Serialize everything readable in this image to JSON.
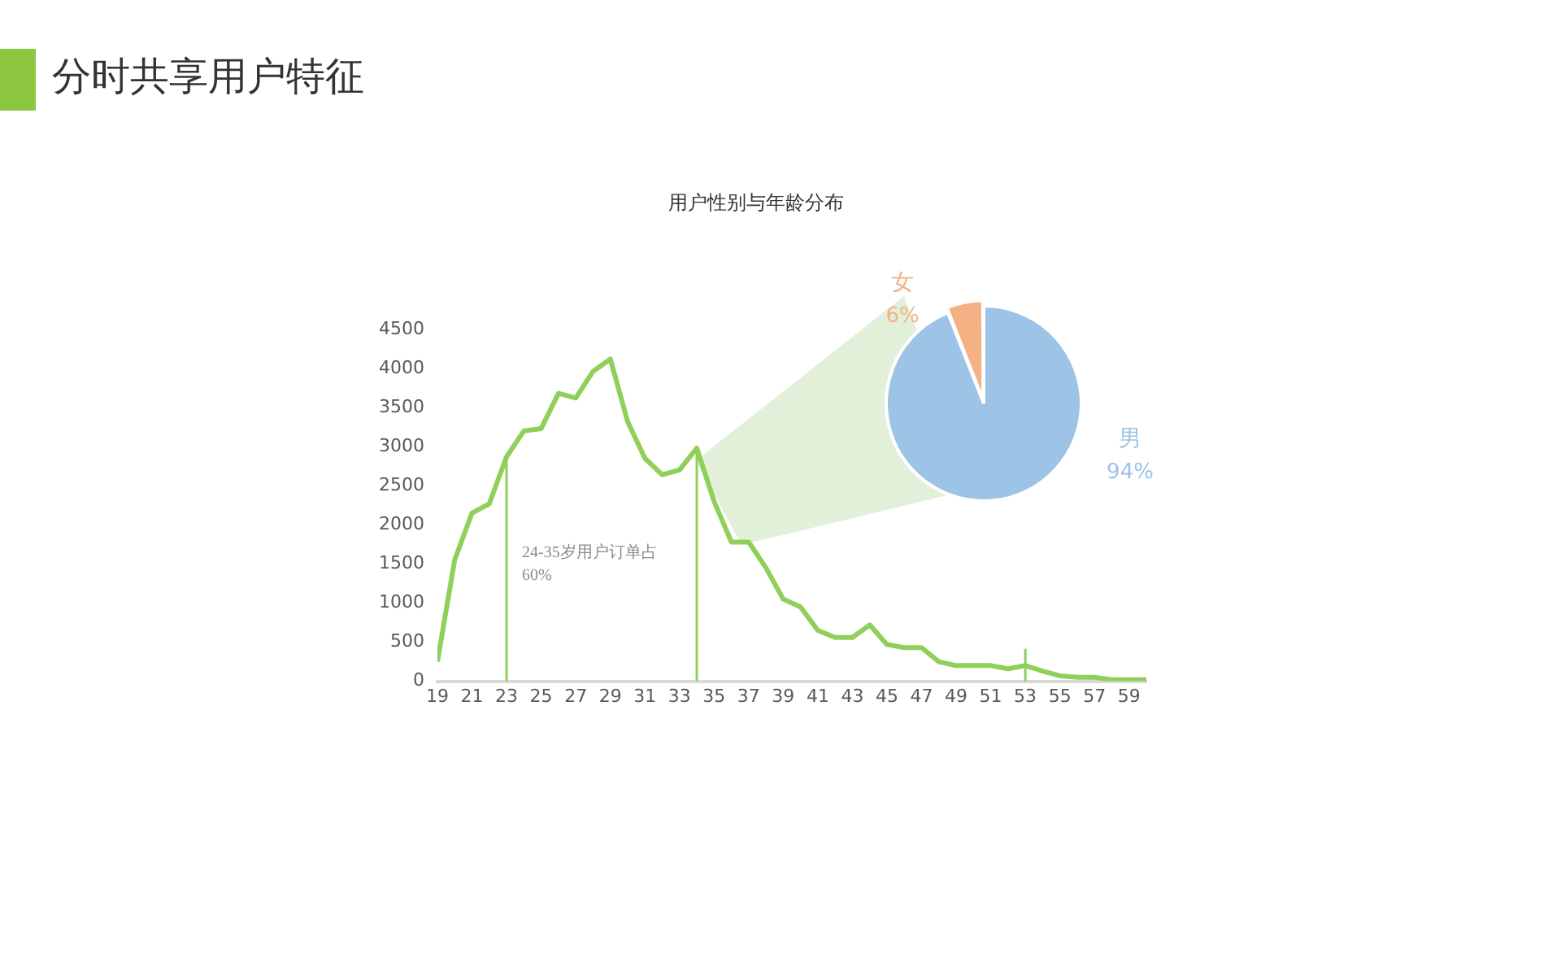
{
  "chart_data": [
    {
      "type": "line",
      "title": "分时共享用户特征",
      "subtitle": "用户性别与年龄分布",
      "x": [
        19,
        20,
        21,
        22,
        23,
        24,
        25,
        26,
        27,
        28,
        29,
        30,
        31,
        32,
        33,
        34,
        35,
        36,
        37,
        38,
        39,
        40,
        41,
        42,
        43,
        44,
        45,
        46,
        47,
        48,
        49,
        50,
        51,
        52,
        53,
        54,
        55,
        56,
        57,
        58,
        59,
        60
      ],
      "series": [
        {
          "color": "#8fcf5a",
          "values": [
            250,
            1550,
            2150,
            2270,
            2870,
            3200,
            3230,
            3680,
            3620,
            3960,
            4120,
            3320,
            2850,
            2640,
            2700,
            2980,
            2300,
            1780,
            1780,
            1450,
            1050,
            950,
            650,
            560,
            560,
            720,
            470,
            430,
            430,
            250,
            200,
            200,
            200,
            160,
            200,
            130,
            70,
            50,
            50,
            20,
            20,
            20
          ]
        }
      ],
      "xlim": [
        19,
        60
      ],
      "xticks": [
        19,
        21,
        23,
        25,
        27,
        29,
        31,
        33,
        35,
        37,
        39,
        41,
        43,
        45,
        47,
        49,
        51,
        53,
        55,
        57,
        59
      ],
      "ylim": [
        0,
        4500
      ],
      "yticks": [
        0,
        500,
        1000,
        1500,
        2000,
        2500,
        3000,
        3500,
        4000,
        4500
      ],
      "grid": false,
      "marker": "none",
      "line_style": "solid",
      "ref_lines": [
        {
          "axis": "x",
          "value": 23,
          "color": "#8fcf5a"
        },
        {
          "axis": "x",
          "value": 34,
          "color": "#8fcf5a"
        },
        {
          "axis": "x",
          "value": 53,
          "color": "#8fcf5a"
        }
      ],
      "annotations": [
        "24-35岁用户订单占60%"
      ]
    },
    {
      "type": "pie",
      "categories": [
        "女",
        "男"
      ],
      "values": [
        6,
        94
      ],
      "colors": [
        "#f4b183",
        "#9dc3e6"
      ],
      "value_labels": [
        "6%",
        "94%"
      ]
    }
  ]
}
